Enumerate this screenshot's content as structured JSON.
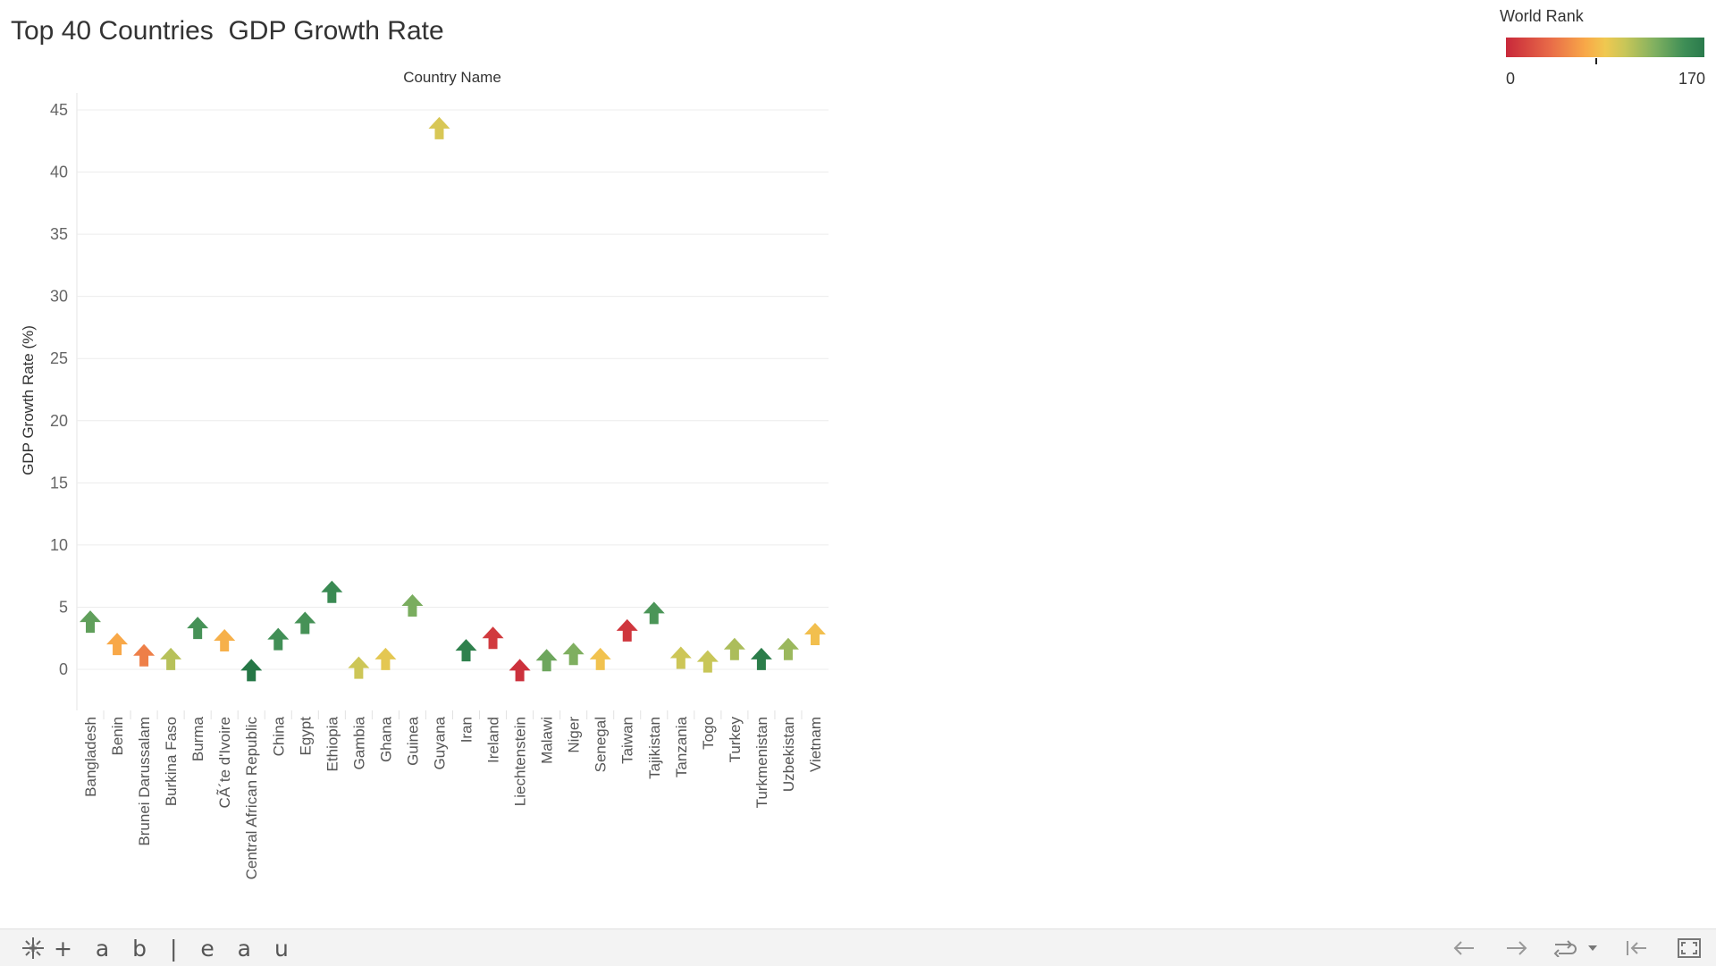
{
  "title": "Top 40 Countries  GDP Growth Rate",
  "legend": {
    "title": "World Rank",
    "min": "0",
    "max": "170"
  },
  "footer": {
    "logo_text": "+ a b | e a u"
  },
  "chart_data": {
    "type": "scatter",
    "mark": "arrow",
    "xlabel": "Country Name",
    "ylabel": "GDP Growth Rate (%)",
    "ylim": [
      -3,
      47
    ],
    "yticks": [
      0,
      5,
      10,
      15,
      20,
      25,
      30,
      35,
      40,
      45
    ],
    "grid": true,
    "legend_placement": "top-right",
    "color_scale": {
      "label": "World Rank",
      "min": 0,
      "max": 170
    },
    "categories": [
      "Bangladesh",
      "Benin",
      "Brunei Darussalam",
      "Burkina Faso",
      "Burma",
      "CÃ´te d'Ivoire",
      "Central African Republic",
      "China",
      "Egypt",
      "Ethiopia",
      "Gambia",
      "Ghana",
      "Guinea",
      "Guyana",
      "Iran",
      "Ireland",
      "Liechtenstein",
      "Malawi",
      "Niger",
      "Senegal",
      "Taiwan",
      "Tajikistan",
      "Tanzania",
      "Togo",
      "Turkey",
      "Turkmenistan",
      "Uzbekistan",
      "Vietnam"
    ],
    "values": [
      3.8,
      2.0,
      1.1,
      0.8,
      3.3,
      2.3,
      -0.1,
      2.4,
      3.7,
      6.2,
      0.1,
      0.8,
      5.1,
      43.5,
      1.5,
      2.5,
      -0.1,
      0.7,
      1.2,
      0.8,
      3.1,
      4.5,
      0.9,
      0.6,
      1.6,
      0.8,
      1.6,
      2.8
    ],
    "world_rank": [
      140,
      68,
      48,
      108,
      150,
      72,
      165,
      152,
      150,
      155,
      100,
      90,
      130,
      95,
      160,
      10,
      5,
      135,
      128,
      82,
      8,
      148,
      100,
      102,
      112,
      162,
      118,
      80
    ]
  }
}
